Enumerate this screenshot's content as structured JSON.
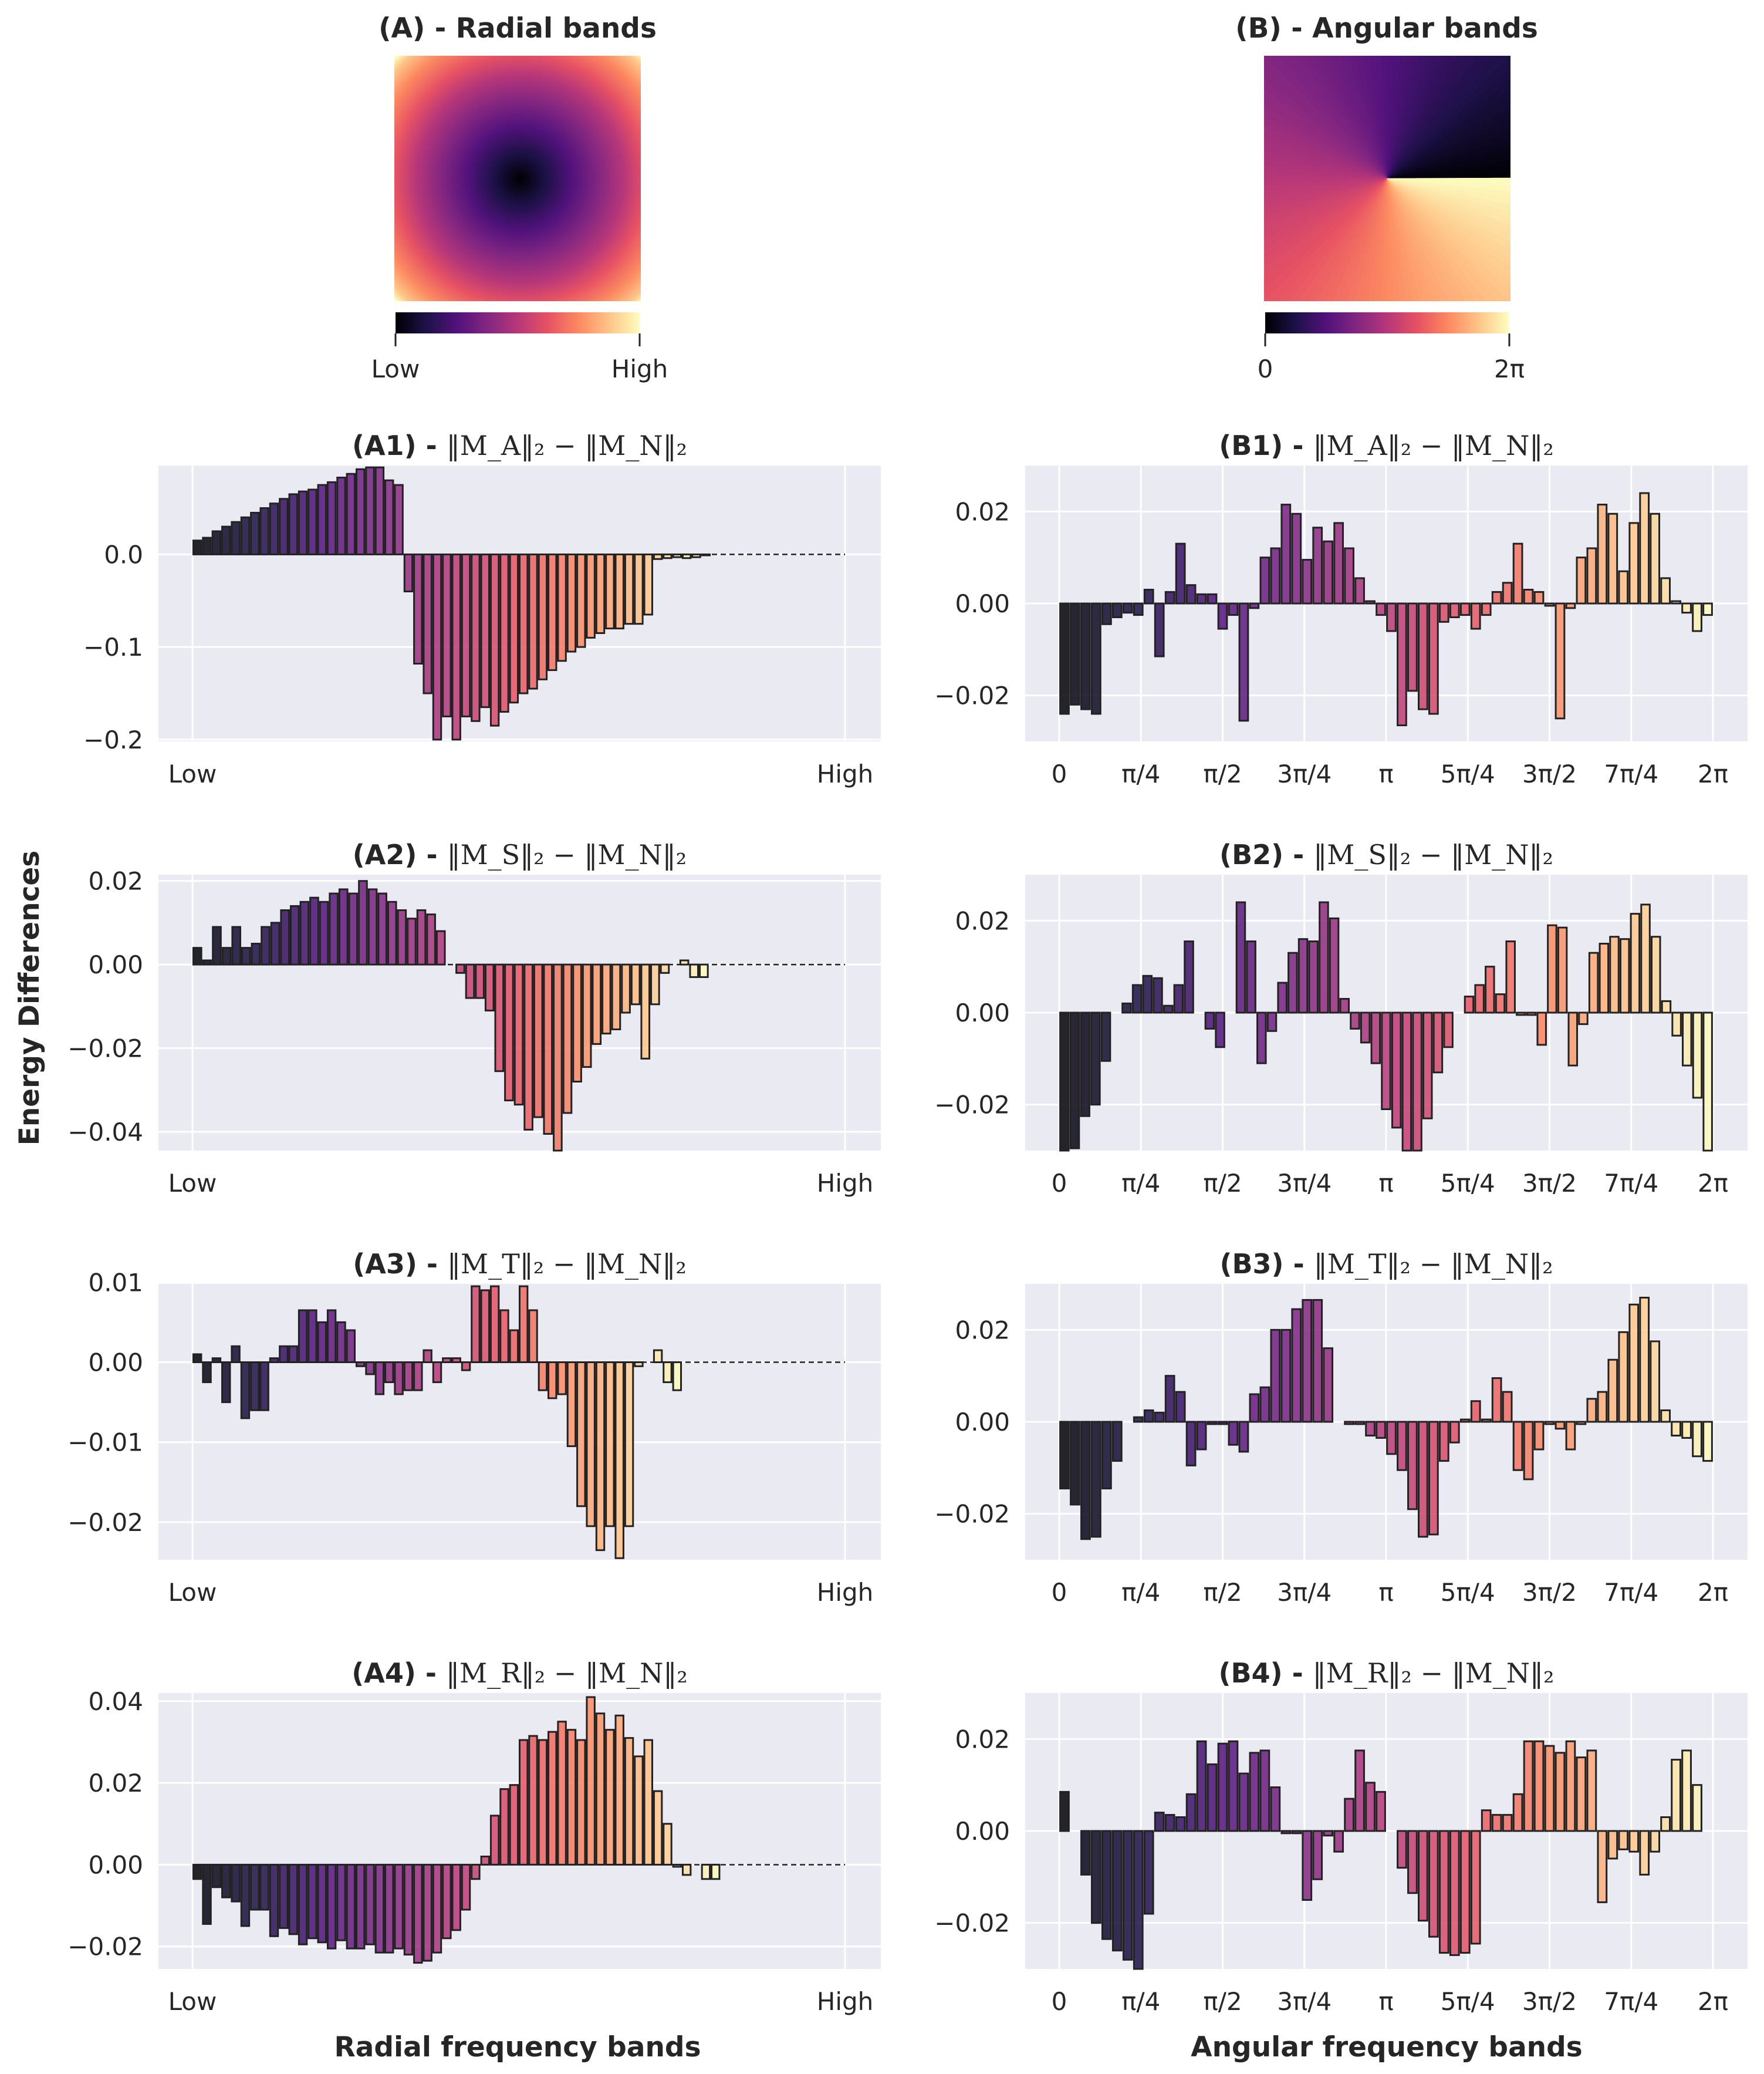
{
  "figure": {
    "ylabel": "Energy Differences",
    "xlabel_radial": "Radial frequency bands",
    "xlabel_angular": "Angular frequency bands"
  },
  "header": {
    "radial": {
      "title": "(A) - Radial bands",
      "cbar_low": "Low",
      "cbar_high": "High"
    },
    "angular": {
      "title": "(B) - Angular bands",
      "cbar_low": "0",
      "cbar_high": "2π"
    }
  },
  "colors": {
    "plot_bg": "#eaeaf2",
    "grid": "#ffffff",
    "bar_edge": "#222222",
    "text": "#262626"
  },
  "chart_data": [
    {
      "id": "A1",
      "type": "bar",
      "kind": "radial",
      "title_prefix": "(A1) - ",
      "title_formula": "‖M_A‖₂ − ‖M_N‖₂",
      "ylim": [
        -0.202,
        0.096
      ],
      "yticks": [
        0.0,
        -0.1,
        -0.2
      ],
      "ytick_labels": [
        "0.0",
        "−0.1",
        "−0.2"
      ],
      "xtick_labels": [
        "Low",
        "High"
      ],
      "values": [
        0.015,
        0.018,
        0.025,
        0.03,
        0.035,
        0.04,
        0.045,
        0.05,
        0.055,
        0.06,
        0.065,
        0.068,
        0.07,
        0.075,
        0.078,
        0.083,
        0.087,
        0.092,
        0.094,
        0.094,
        0.08,
        0.075,
        -0.04,
        -0.118,
        -0.15,
        -0.2,
        -0.175,
        -0.2,
        -0.175,
        -0.18,
        -0.165,
        -0.185,
        -0.17,
        -0.16,
        -0.15,
        -0.145,
        -0.135,
        -0.125,
        -0.115,
        -0.105,
        -0.1,
        -0.09,
        -0.085,
        -0.08,
        -0.08,
        -0.075,
        -0.075,
        -0.065,
        -0.005,
        -0.004,
        -0.003,
        -0.004,
        -0.003,
        -0.001,
        0,
        0,
        0,
        0,
        0,
        0,
        0,
        0,
        0,
        0,
        0,
        0,
        0,
        0
      ]
    },
    {
      "id": "B1",
      "type": "bar",
      "kind": "angular",
      "title_prefix": "(B1) - ",
      "title_formula": "‖M_A‖₂ − ‖M_N‖₂",
      "ylim": [
        -0.03,
        0.03
      ],
      "yticks": [
        0.02,
        0.0,
        -0.02
      ],
      "ytick_labels": [
        "0.02",
        "0.00",
        "−0.02"
      ],
      "xtick_labels": [
        "0",
        "π/4",
        "π/2",
        "3π/4",
        "π",
        "5π/4",
        "3π/2",
        "7π/4",
        "2π"
      ],
      "values": [
        -0.024,
        -0.022,
        -0.023,
        -0.024,
        -0.0045,
        -0.003,
        -0.002,
        -0.0025,
        0.003,
        -0.0115,
        0.0025,
        0.013,
        0.004,
        0.002,
        0.002,
        -0.0055,
        -0.0025,
        -0.0255,
        -0.001,
        0.01,
        0.012,
        0.0215,
        0.0195,
        0.0095,
        0.0165,
        0.0135,
        0.0175,
        0.012,
        0.0055,
        0.0005,
        -0.0025,
        -0.006,
        -0.0265,
        -0.019,
        -0.023,
        -0.024,
        -0.004,
        -0.003,
        -0.0025,
        -0.0055,
        -0.0025,
        0.0025,
        0.0045,
        0.013,
        0.003,
        0.0025,
        -0.0005,
        -0.025,
        -0.001,
        0.01,
        0.012,
        0.0215,
        0.0195,
        0.007,
        0.0175,
        0.024,
        0.0195,
        0.0055,
        0.0005,
        -0.002,
        -0.006,
        -0.0025
      ]
    },
    {
      "id": "A2",
      "type": "bar",
      "kind": "radial",
      "title_prefix": "(A2) - ",
      "title_formula": "‖M_S‖₂ − ‖M_N‖₂",
      "ylim": [
        -0.0445,
        0.0215
      ],
      "yticks": [
        0.02,
        0.0,
        -0.02,
        -0.04
      ],
      "ytick_labels": [
        "0.02",
        "0.00",
        "−0.02",
        "−0.04"
      ],
      "xtick_labels": [
        "Low",
        "High"
      ],
      "values": [
        0.004,
        0.001,
        0.009,
        0.004,
        0.009,
        0.004,
        0.005,
        0.009,
        0.01,
        0.013,
        0.014,
        0.015,
        0.016,
        0.015,
        0.017,
        0.018,
        0.017,
        0.02,
        0.018,
        0.017,
        0.015,
        0.013,
        0.011,
        0.013,
        0.012,
        0.008,
        0.0,
        -0.002,
        -0.008,
        -0.008,
        -0.011,
        -0.0255,
        -0.0325,
        -0.0335,
        -0.0395,
        -0.0365,
        -0.0405,
        -0.0445,
        -0.0355,
        -0.028,
        -0.0245,
        -0.019,
        -0.0165,
        -0.0155,
        -0.0115,
        -0.0095,
        -0.0225,
        -0.0095,
        -0.002,
        0.0,
        0.001,
        -0.003,
        -0.003,
        0,
        0,
        0,
        0,
        0,
        0,
        0,
        0,
        0,
        0,
        0,
        0,
        0,
        0
      ]
    },
    {
      "id": "B2",
      "type": "bar",
      "kind": "angular",
      "title_prefix": "(B2) - ",
      "title_formula": "‖M_S‖₂ − ‖M_N‖₂",
      "ylim": [
        -0.03,
        0.03
      ],
      "yticks": [
        0.02,
        0.0,
        -0.02
      ],
      "ytick_labels": [
        "0.02",
        "0.00",
        "−0.02"
      ],
      "xtick_labels": [
        "0",
        "π/4",
        "π/2",
        "3π/4",
        "π",
        "5π/4",
        "3π/2",
        "7π/4",
        "2π"
      ],
      "values": [
        -0.03,
        -0.0295,
        -0.0225,
        -0.02,
        -0.0105,
        0.0,
        0.002,
        0.006,
        0.008,
        0.0075,
        0.0015,
        0.006,
        0.0155,
        0.0,
        -0.0035,
        -0.0075,
        0.0,
        0.024,
        0.0155,
        -0.011,
        -0.004,
        0.0065,
        0.013,
        0.016,
        0.0155,
        0.024,
        0.0205,
        0.003,
        -0.0035,
        -0.0065,
        -0.011,
        -0.021,
        -0.025,
        -0.03,
        -0.03,
        -0.023,
        -0.013,
        -0.0075,
        0.0,
        0.0035,
        0.006,
        0.01,
        0.004,
        0.0155,
        -0.0005,
        -0.0005,
        -0.007,
        0.019,
        0.0185,
        -0.0115,
        -0.0025,
        0.013,
        0.015,
        0.0165,
        0.016,
        0.0215,
        0.0235,
        0.0165,
        0.0025,
        -0.005,
        -0.0115,
        -0.0185,
        -0.03
      ]
    },
    {
      "id": "A3",
      "type": "bar",
      "kind": "radial",
      "title_prefix": "(A3) - ",
      "title_formula": "‖M_T‖₂ − ‖M_N‖₂",
      "ylim": [
        -0.0247,
        0.0098
      ],
      "yticks": [
        0.01,
        0.0,
        -0.01,
        -0.02
      ],
      "ytick_labels": [
        "0.01",
        "0.00",
        "−0.01",
        "−0.02"
      ],
      "xtick_labels": [
        "Low",
        "High"
      ],
      "values": [
        0.001,
        -0.0025,
        0.0005,
        -0.005,
        0.002,
        -0.007,
        -0.006,
        -0.006,
        0.0005,
        0.002,
        0.002,
        0.0065,
        0.0065,
        0.005,
        0.0065,
        0.005,
        0.004,
        -0.0005,
        -0.0015,
        -0.004,
        -0.0025,
        -0.004,
        -0.0035,
        -0.0035,
        0.0015,
        -0.0025,
        0.0005,
        0.0005,
        -0.001,
        0.0095,
        0.009,
        0.0095,
        0.0065,
        0.004,
        0.0095,
        0.0065,
        -0.0035,
        -0.0045,
        -0.004,
        -0.0105,
        -0.018,
        -0.0205,
        -0.0235,
        -0.0205,
        -0.0245,
        -0.0205,
        -0.0005,
        0.0,
        0.0015,
        -0.0025,
        -0.0035,
        0,
        0,
        0,
        0,
        0,
        0,
        0,
        0,
        0,
        0,
        0,
        0,
        0,
        0,
        0,
        0,
        0
      ]
    },
    {
      "id": "B3",
      "type": "bar",
      "kind": "angular",
      "title_prefix": "(B3) - ",
      "title_formula": "‖M_T‖₂ − ‖M_N‖₂",
      "ylim": [
        -0.03,
        0.03
      ],
      "yticks": [
        0.02,
        0.0,
        -0.02
      ],
      "ytick_labels": [
        "0.02",
        "0.00",
        "−0.02"
      ],
      "xtick_labels": [
        "0",
        "π/4",
        "π/2",
        "3π/4",
        "π",
        "5π/4",
        "3π/2",
        "7π/4",
        "2π"
      ],
      "values": [
        -0.0145,
        -0.018,
        -0.0255,
        -0.025,
        -0.0145,
        -0.0085,
        0.0,
        0.001,
        0.0025,
        0.002,
        0.01,
        0.0065,
        -0.0095,
        -0.006,
        -0.0005,
        -0.0005,
        -0.005,
        -0.0065,
        0.006,
        0.0075,
        0.02,
        0.02,
        0.0245,
        0.0265,
        0.0265,
        0.016,
        0.0,
        -0.0005,
        -0.0005,
        -0.003,
        -0.0035,
        -0.007,
        -0.0105,
        -0.019,
        -0.025,
        -0.0245,
        -0.0085,
        -0.0045,
        0.0005,
        0.0045,
        0.0005,
        0.0095,
        0.0065,
        -0.0105,
        -0.0125,
        -0.006,
        -0.0005,
        -0.0015,
        -0.006,
        -0.0005,
        0.005,
        0.0065,
        0.0135,
        0.0195,
        0.0255,
        0.027,
        0.0175,
        0.0025,
        -0.003,
        -0.0035,
        -0.0075,
        -0.0085
      ]
    },
    {
      "id": "A4",
      "type": "bar",
      "kind": "radial",
      "title_prefix": "(A4) - ",
      "title_formula": "‖M_R‖₂ − ‖M_N‖₂",
      "ylim": [
        -0.0255,
        0.042
      ],
      "yticks": [
        0.04,
        0.02,
        0.0,
        -0.02
      ],
      "ytick_labels": [
        "0.04",
        "0.02",
        "0.00",
        "−0.02"
      ],
      "xtick_labels": [
        "Low",
        "High"
      ],
      "values": [
        -0.0035,
        -0.0145,
        -0.0055,
        -0.008,
        -0.009,
        -0.015,
        -0.011,
        -0.011,
        -0.0175,
        -0.0155,
        -0.017,
        -0.0195,
        -0.018,
        -0.019,
        -0.0205,
        -0.0185,
        -0.0205,
        -0.0205,
        -0.0195,
        -0.0215,
        -0.0215,
        -0.0205,
        -0.022,
        -0.024,
        -0.0235,
        -0.0215,
        -0.018,
        -0.016,
        -0.011,
        -0.0035,
        0.002,
        0.012,
        0.0185,
        0.0195,
        0.0305,
        0.0315,
        0.0305,
        0.0325,
        0.035,
        0.033,
        0.0305,
        0.041,
        0.037,
        0.033,
        0.0365,
        0.031,
        0.0265,
        0.0305,
        0.018,
        0.01,
        -0.0005,
        -0.0025,
        0.0,
        -0.0035,
        -0.0035,
        0,
        0,
        0,
        0,
        0,
        0,
        0,
        0,
        0,
        0,
        0,
        0,
        0
      ]
    },
    {
      "id": "B4",
      "type": "bar",
      "kind": "angular",
      "title_prefix": "(B4) - ",
      "title_formula": "‖M_R‖₂ − ‖M_N‖₂",
      "ylim": [
        -0.03,
        0.03
      ],
      "yticks": [
        0.02,
        0.0,
        -0.02
      ],
      "ytick_labels": [
        "0.02",
        "0.00",
        "−0.02"
      ],
      "xtick_labels": [
        "0",
        "π/4",
        "π/2",
        "3π/4",
        "π",
        "5π/4",
        "3π/2",
        "7π/4",
        "2π"
      ],
      "values": [
        0.0085,
        0.0,
        -0.0095,
        -0.02,
        -0.0235,
        -0.026,
        -0.028,
        -0.03,
        -0.018,
        0.004,
        0.0035,
        0.003,
        0.008,
        0.0195,
        0.0145,
        0.019,
        0.0195,
        0.0125,
        0.017,
        0.0175,
        0.0095,
        -0.0005,
        -0.0005,
        -0.015,
        -0.0105,
        -0.001,
        -0.0045,
        0.007,
        0.0175,
        0.0105,
        0.0085,
        0.0,
        -0.008,
        -0.0135,
        -0.0195,
        -0.023,
        -0.0265,
        -0.027,
        -0.0265,
        -0.0245,
        0.0045,
        0.0035,
        0.0035,
        0.008,
        0.0195,
        0.0195,
        0.0185,
        0.017,
        0.0195,
        0.016,
        0.0175,
        -0.0155,
        -0.006,
        -0.004,
        -0.0045,
        -0.0095,
        -0.0045,
        0.003,
        0.0155,
        0.0175,
        0.01,
        0.0
      ]
    }
  ]
}
